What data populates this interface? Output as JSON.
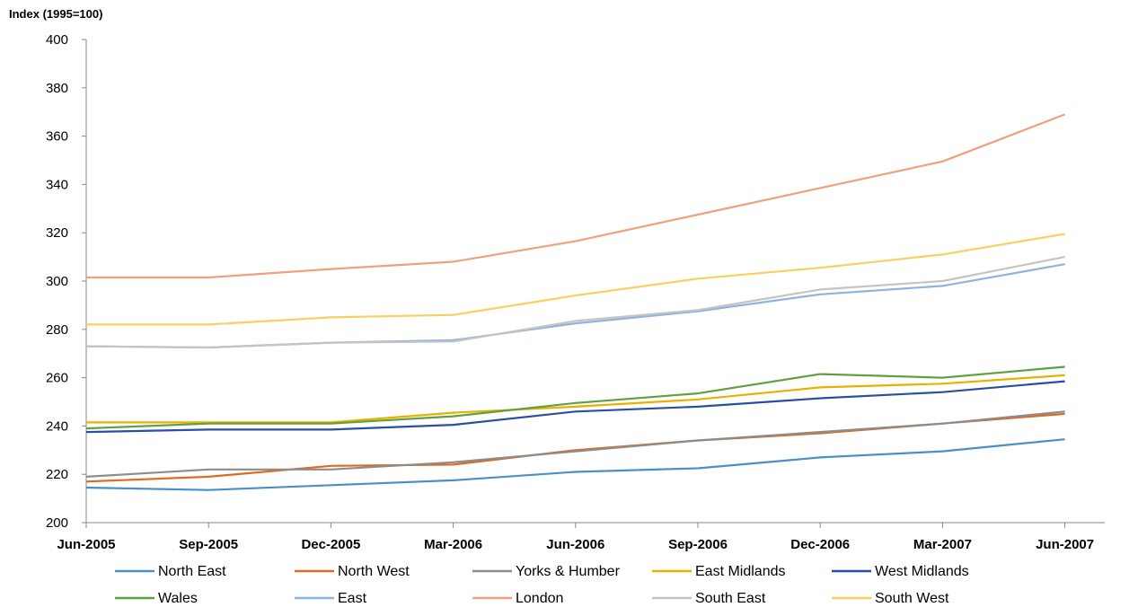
{
  "chart_data": {
    "type": "line",
    "title": "",
    "xlabel": "",
    "ylabel": "Index (1995=100)",
    "ylim": [
      200,
      400
    ],
    "yticks": [
      "200",
      "220",
      "240",
      "260",
      "280",
      "300",
      "320",
      "340",
      "360",
      "380",
      "400"
    ],
    "categories": [
      "Jun-2005",
      "Sep-2005",
      "Dec-2005",
      "Mar-2006",
      "Jun-2006",
      "Sep-2006",
      "Dec-2006",
      "Mar-2007",
      "Jun-2007"
    ],
    "grid": false,
    "legend_position": "bottom",
    "series": [
      {
        "name": "North East",
        "color": "#4A90C8",
        "values": [
          214.5,
          213.5,
          215.5,
          217.5,
          221,
          222.5,
          227,
          229.5,
          234.5
        ]
      },
      {
        "name": "North West",
        "color": "#E06A1E",
        "values": [
          217,
          219,
          223.5,
          224,
          230,
          234,
          237,
          241,
          245
        ]
      },
      {
        "name": "Yorks & Humber",
        "color": "#8C8C8C",
        "values": [
          219,
          222,
          222,
          225,
          229.5,
          234,
          237.5,
          241,
          246
        ]
      },
      {
        "name": "East Midlands",
        "color": "#E8B000",
        "values": [
          241.5,
          241.5,
          241.5,
          245.5,
          248,
          251,
          256,
          257.5,
          261
        ]
      },
      {
        "name": "West Midlands",
        "color": "#2A4FA0",
        "values": [
          237.5,
          238.5,
          238.5,
          240.5,
          246,
          248,
          251.5,
          254,
          258.5
        ]
      },
      {
        "name": "Wales",
        "color": "#5FA040",
        "values": [
          239,
          241,
          241,
          244,
          249.5,
          253.5,
          261.5,
          260,
          264.5
        ]
      },
      {
        "name": "East",
        "color": "#8EB3E0",
        "values": [
          273,
          272.5,
          274.5,
          275.5,
          282.5,
          287.5,
          294.5,
          298,
          307
        ]
      },
      {
        "name": "London",
        "color": "#F0A080",
        "values": [
          301.5,
          301.5,
          305,
          308,
          316.5,
          327.5,
          338.5,
          349.5,
          369
        ]
      },
      {
        "name": "South East",
        "color": "#C4C4C4",
        "values": [
          273,
          272.5,
          274.5,
          275,
          283.5,
          288,
          296.5,
          300,
          310
        ]
      },
      {
        "name": "South West",
        "color": "#F9CF60",
        "values": [
          282,
          282,
          285,
          286,
          294,
          301,
          305.5,
          311,
          319.5
        ]
      }
    ]
  }
}
